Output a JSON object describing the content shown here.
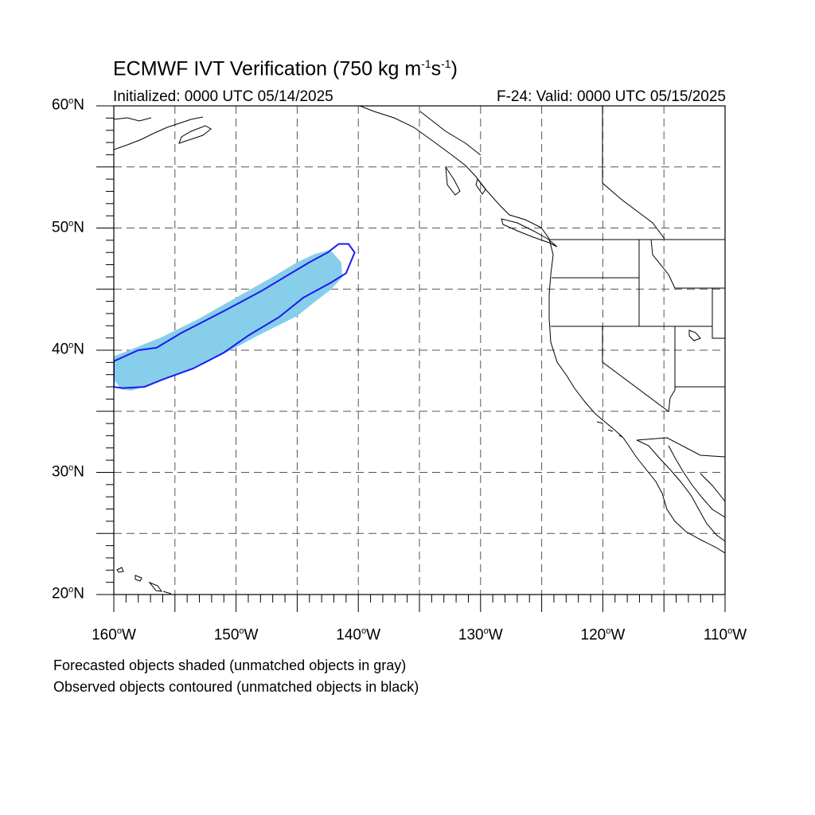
{
  "title_main": "ECMWF IVT Verification (750 kg m",
  "title_exp1": "-1",
  "title_mid": "s",
  "title_exp2": "-1",
  "title_end": ")",
  "initialized": "Initialized: 0000 UTC 05/14/2025",
  "valid": "F-24: Valid: 0000 UTC 05/15/2025",
  "lat_labels": [
    "60",
    "50",
    "40",
    "30",
    "20"
  ],
  "lat_suffix": "N",
  "lon_labels": [
    "160",
    "150",
    "140",
    "130",
    "120",
    "110"
  ],
  "lon_suffix": "W",
  "degree_mark": "o",
  "notes": [
    "Forecasted objects shaded (unmatched objects in gray)",
    "Observed objects contoured (unmatched objects in black)"
  ],
  "map_extent": {
    "lon_min": -160,
    "lon_max": -110,
    "lat_min": 20,
    "lat_max": 60
  },
  "colors": {
    "forecast_fill": "#87ceeb",
    "observed_contour": "#1a1aee",
    "coast": "#000000",
    "grid": "#555555"
  },
  "forecast_object": {
    "outline_lonlat": [
      [
        -160,
        37.6
      ],
      [
        -159.4,
        36.8
      ],
      [
        -158.5,
        36.7
      ],
      [
        -157,
        37.2
      ],
      [
        -154,
        38.3
      ],
      [
        -151,
        39.7
      ],
      [
        -148,
        41.3
      ],
      [
        -145,
        42.8
      ],
      [
        -143.5,
        44
      ],
      [
        -142.2,
        45
      ],
      [
        -141.3,
        46
      ],
      [
        -141.4,
        47.2
      ],
      [
        -142.3,
        48.2
      ],
      [
        -143.5,
        47.9
      ],
      [
        -145,
        47.2
      ],
      [
        -147,
        46
      ],
      [
        -150,
        44.3
      ],
      [
        -153,
        42.6
      ],
      [
        -156,
        41.1
      ],
      [
        -158.5,
        40.1
      ],
      [
        -160,
        39.5
      ]
    ]
  },
  "observed_object": {
    "outline_lonlat": [
      [
        -160,
        39.1
      ],
      [
        -158,
        40
      ],
      [
        -156.5,
        40.2
      ],
      [
        -154.5,
        41.4
      ],
      [
        -151,
        43.2
      ],
      [
        -148,
        44.8
      ],
      [
        -146,
        46
      ],
      [
        -144,
        47.2
      ],
      [
        -142.5,
        48
      ],
      [
        -141.6,
        48.7
      ],
      [
        -140.8,
        48.7
      ],
      [
        -140.3,
        48
      ],
      [
        -141,
        46.3
      ],
      [
        -142.3,
        45.5
      ],
      [
        -144.5,
        44.3
      ],
      [
        -146.5,
        42.7
      ],
      [
        -149,
        41.2
      ],
      [
        -151,
        39.8
      ],
      [
        -153.5,
        38.5
      ],
      [
        -156,
        37.6
      ],
      [
        -157.5,
        37
      ],
      [
        -159.3,
        36.9
      ],
      [
        -160,
        37
      ]
    ]
  }
}
